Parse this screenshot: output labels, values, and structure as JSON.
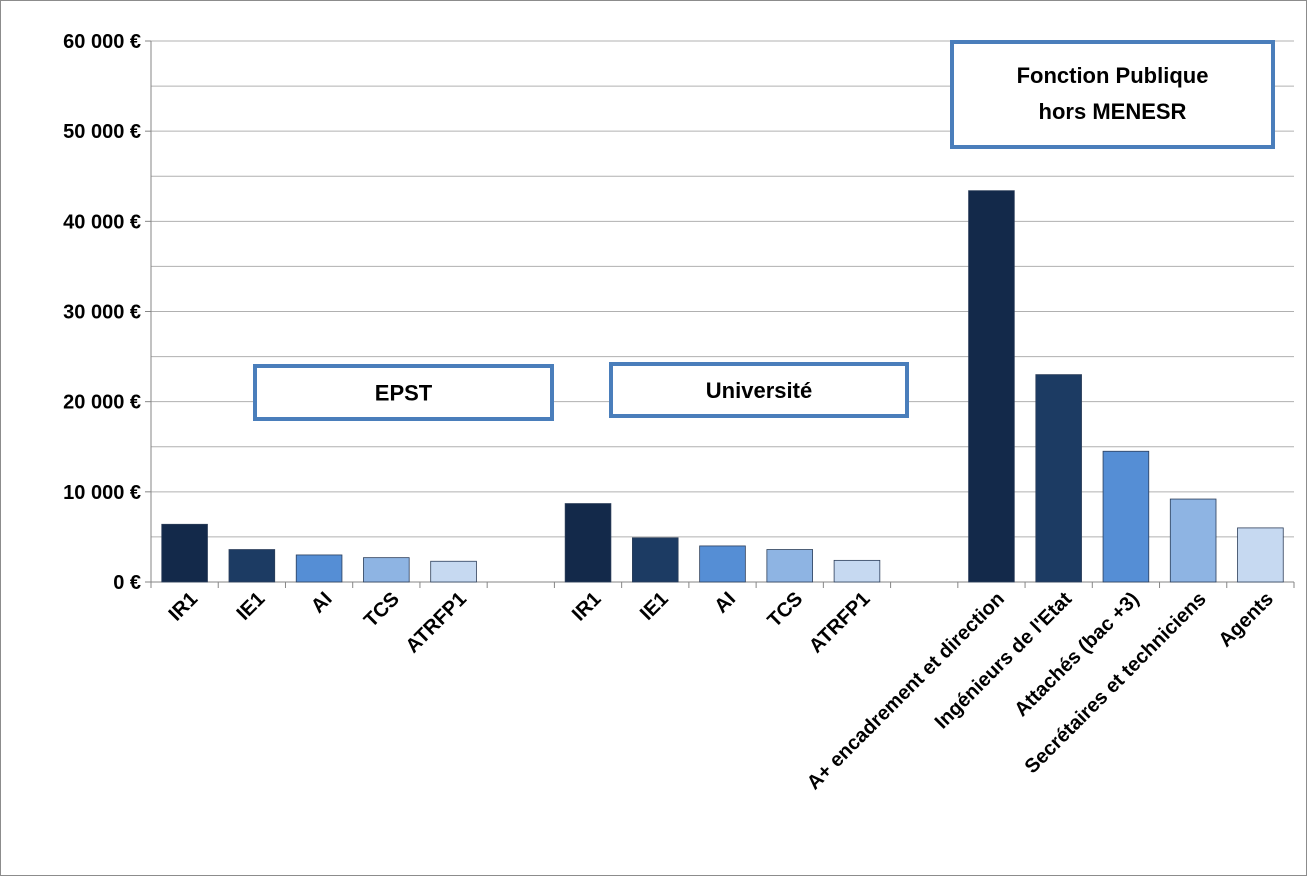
{
  "chart_data": {
    "type": "bar",
    "title": "",
    "xlabel": "",
    "ylabel": "",
    "ylim": [
      0,
      60000
    ],
    "y_ticks": [
      "0 €",
      "10 000 €",
      "20 000 €",
      "30 000 €",
      "40 000 €",
      "50 000 €",
      "60 000 €"
    ],
    "y_tick_values": [
      0,
      10000,
      20000,
      30000,
      40000,
      50000,
      60000
    ],
    "grid": "major and minor horizontal",
    "legend": "none",
    "groups": [
      {
        "label": "EPST",
        "categories": [
          "IR1",
          "IE1",
          "AI",
          "TCS",
          "ATRFP1"
        ],
        "values": [
          6400,
          3600,
          3000,
          2700,
          2300
        ],
        "colors": [
          "#13294a",
          "#1c3b63",
          "#558ed5",
          "#8eb4e3",
          "#c6d9f1"
        ]
      },
      {
        "label": "Université",
        "categories": [
          "IR1",
          "IE1",
          "AI",
          "TCS",
          "ATRFP1"
        ],
        "values": [
          8700,
          4900,
          4000,
          3600,
          2400
        ],
        "colors": [
          "#13294a",
          "#1c3b63",
          "#558ed5",
          "#8eb4e3",
          "#c6d9f1"
        ]
      },
      {
        "label_lines": [
          "Fonction Publique",
          "hors MENESR"
        ],
        "categories": [
          "A+ encadrement et direction",
          "Ingénieurs de l'Etat",
          "Attachés (bac +3)",
          "Secrétaires et techniciens",
          "Agents"
        ],
        "values": [
          43400,
          23000,
          14500,
          9200,
          6000
        ],
        "colors": [
          "#13294a",
          "#1c3b63",
          "#558ed5",
          "#8eb4e3",
          "#c6d9f1"
        ]
      }
    ],
    "annotation_border_color": "#4a7ebb",
    "gridline_color": "#b0b0b0"
  }
}
